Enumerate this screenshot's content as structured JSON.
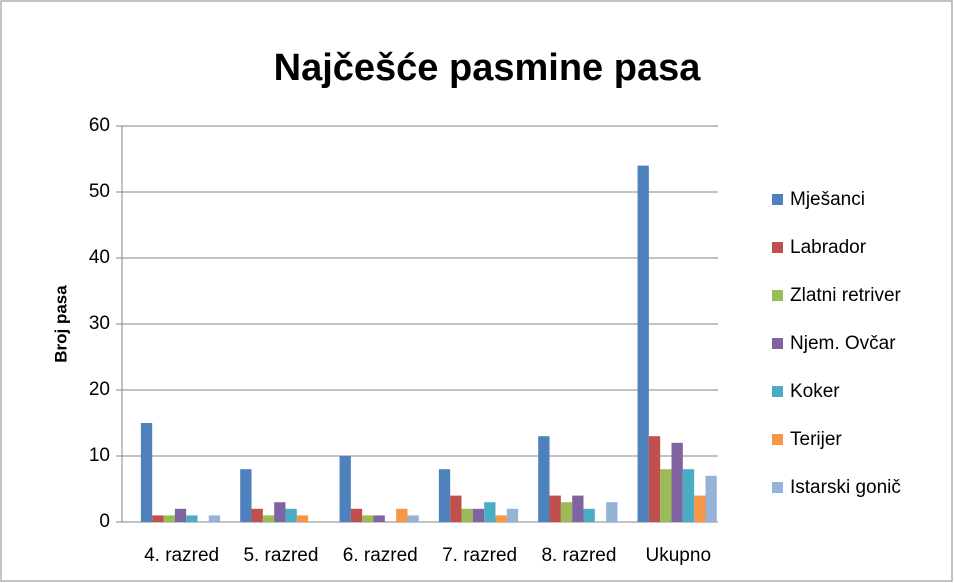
{
  "chart_data": {
    "type": "bar",
    "title": "Najčešće pasmine pasa",
    "y_label": "Broj pasa",
    "categories": [
      "4. razred",
      "5. razred",
      "6. razred",
      "7. razred",
      "8. razred",
      "Ukupno"
    ],
    "series": [
      {
        "name": "Mješanci",
        "color": "#4f81bd",
        "values": [
          15,
          8,
          10,
          8,
          13,
          54
        ]
      },
      {
        "name": "Labrador",
        "color": "#c0504d",
        "values": [
          1,
          2,
          2,
          4,
          4,
          13
        ]
      },
      {
        "name": "Zlatni retriver",
        "color": "#9bbb59",
        "values": [
          1,
          1,
          1,
          2,
          3,
          8
        ]
      },
      {
        "name": "Njem. Ovčar",
        "color": "#8064a2",
        "values": [
          2,
          3,
          1,
          2,
          4,
          12
        ]
      },
      {
        "name": "Koker",
        "color": "#4bacc6",
        "values": [
          1,
          2,
          0,
          3,
          2,
          8
        ]
      },
      {
        "name": "Terijer",
        "color": "#f79646",
        "values": [
          0,
          1,
          2,
          1,
          0,
          4
        ]
      },
      {
        "name": "Istarski gonič",
        "color": "#95b3d7",
        "values": [
          1,
          0,
          1,
          2,
          3,
          7
        ]
      }
    ],
    "ylim": [
      0,
      60
    ],
    "yticks": [
      0,
      10,
      20,
      30,
      40,
      50,
      60
    ],
    "grid": true,
    "legend": "right"
  }
}
